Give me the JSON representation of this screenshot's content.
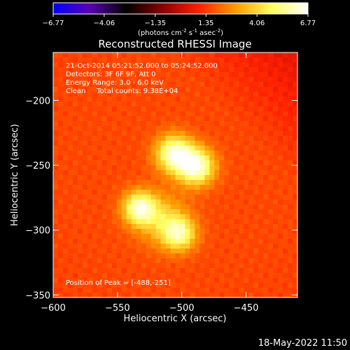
{
  "chart_data": {
    "type": "heatmap",
    "title": "Reconstructed RHESSI Image",
    "xlabel": "Heliocentric X (arcsec)",
    "ylabel": "Heliocentric Y (arcsec)",
    "xlim": [
      -600,
      -410
    ],
    "ylim": [
      -352,
      -163
    ],
    "xticks": [
      -600,
      -550,
      -500,
      -450
    ],
    "yticks": [
      -200,
      -250,
      -300,
      -350
    ],
    "grid": false,
    "colorbar": {
      "position": "top",
      "range": [
        -6.77,
        6.77
      ],
      "ticks": [
        "-6.77",
        "-4.06",
        "-1.35",
        "1.35",
        "4.06",
        "6.77"
      ],
      "label_parts": [
        "(photons cm",
        "-2",
        " s",
        "-1",
        " asec",
        "-2",
        ")"
      ],
      "colormap": [
        "#0000ff",
        "#5a00b0",
        "#000000",
        "#8a0000",
        "#ff2000",
        "#ff9a00",
        "#ffff60",
        "#ffffff"
      ]
    },
    "annotations": [
      "21-Oct-2014 05:21:52.000 to 05:24:52.000",
      "Detectors: 3F 6F 9F, Att 0",
      "Energy Range: 3.0 - 6.0 keV",
      "Clean     Total counts: 9.38E+04"
    ],
    "peak_label": "Position of Peak = [-488,-251]",
    "peak": [
      -488,
      -251
    ],
    "background_level": 1.6,
    "sources": [
      {
        "x": -506,
        "y": -241,
        "amplitude": 4.6,
        "sigma": 10
      },
      {
        "x": -489,
        "y": -251,
        "amplitude": 4.9,
        "sigma": 10
      },
      {
        "x": -533,
        "y": -283,
        "amplitude": 4.3,
        "sigma": 9
      },
      {
        "x": -502,
        "y": -303,
        "amplitude": 3.6,
        "sigma": 9
      },
      {
        "x": -515,
        "y": -292,
        "amplitude": 2.2,
        "sigma": 14
      }
    ]
  },
  "footer": {
    "timestamp": "18-May-2022 11:50"
  }
}
